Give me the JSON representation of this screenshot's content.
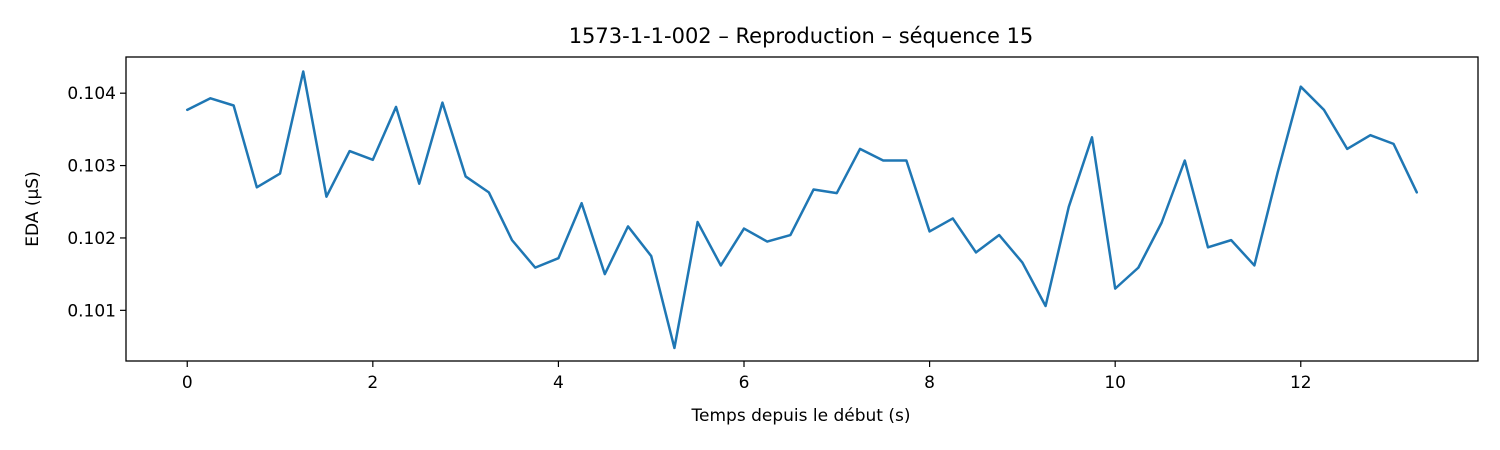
{
  "chart_data": {
    "type": "line",
    "title": "1573-1-1-002 – Reproduction – séquence 15",
    "xlabel": "Temps depuis le début (s)",
    "ylabel": "EDA (µS)",
    "xlim": [
      -0.66,
      13.91
    ],
    "ylim": [
      0.1003,
      0.1045
    ],
    "xticks": [
      0,
      2,
      4,
      6,
      8,
      10,
      12
    ],
    "xtick_labels": [
      "0",
      "2",
      "4",
      "6",
      "8",
      "10",
      "12"
    ],
    "yticks": [
      0.101,
      0.102,
      0.103,
      0.104
    ],
    "ytick_labels": [
      "0.101",
      "0.102",
      "0.103",
      "0.104"
    ],
    "grid": false,
    "color": "#1f77b4",
    "series": [
      {
        "x": [
          0,
          0.25,
          0.5,
          0.75,
          1.0,
          1.25,
          1.5,
          1.75,
          2.0,
          2.25,
          2.5,
          2.75,
          3.0,
          3.25,
          3.5,
          3.75,
          4.0,
          4.25,
          4.5,
          4.75,
          5.0,
          5.25,
          5.5,
          5.75,
          6.0,
          6.25,
          6.5,
          6.75,
          7.0,
          7.25,
          7.5,
          7.75,
          8.0,
          8.25,
          8.5,
          8.75,
          9.0,
          9.25,
          9.5,
          9.75,
          10.0,
          10.25,
          10.5,
          10.75,
          11.0,
          11.25,
          11.5,
          11.75,
          12.0,
          12.25,
          12.5,
          12.75,
          13.0,
          13.25
        ],
        "values": [
          0.10377,
          0.10393,
          0.10383,
          0.1027,
          0.10289,
          0.1043,
          0.10257,
          0.1032,
          0.10308,
          0.10381,
          0.10275,
          0.10387,
          0.10285,
          0.10263,
          0.10197,
          0.10159,
          0.10172,
          0.10248,
          0.1015,
          0.10216,
          0.10175,
          0.10048,
          0.10222,
          0.10162,
          0.10213,
          0.10195,
          0.10204,
          0.10267,
          0.10262,
          0.10323,
          0.10307,
          0.10307,
          0.10209,
          0.10227,
          0.1018,
          0.10204,
          0.10166,
          0.10106,
          0.10243,
          0.10339,
          0.1013,
          0.10159,
          0.10221,
          0.10307,
          0.10187,
          0.10197,
          0.10162,
          0.1029,
          0.10409,
          0.10377,
          0.10323,
          0.10342,
          0.1033,
          0.10263
        ]
      }
    ]
  }
}
